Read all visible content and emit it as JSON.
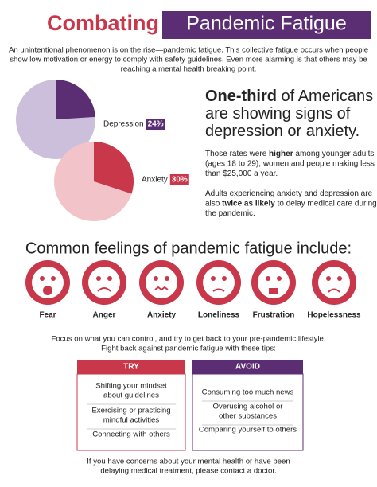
{
  "header": {
    "title_part1": "Combating",
    "title_part2": "Pandemic Fatigue"
  },
  "intro": [
    "An unintentional phenomenon is on the rise—pandemic fatigue. This collective fatigue occurs when people",
    "show low motivation or energy to comply with safety guidelines. Even more alarming is that others may be",
    "reaching a mental health breaking point."
  ],
  "stats": [
    {
      "label": "Depression",
      "value": 24,
      "value_label": "24%",
      "color": "#5b2d72",
      "rest_color": "#cbbfdb"
    },
    {
      "label": "Anxiety",
      "value": 30,
      "value_label": "30%",
      "color": "#c8374a",
      "rest_color": "#f2c3c8"
    }
  ],
  "headline": [
    [
      {
        "t": "One-third",
        "b": true
      },
      {
        "t": " of Americans",
        "b": false
      }
    ],
    [
      {
        "t": "are showing signs of",
        "b": false
      }
    ],
    [
      {
        "t": "depression or anxiety.",
        "b": false
      }
    ]
  ],
  "paragraphs": [
    [
      [
        {
          "t": "Those rates were ",
          "b": false
        },
        {
          "t": "higher",
          "b": true
        },
        {
          "t": " among younger adults",
          "b": false
        }
      ],
      [
        {
          "t": "(ages 18 to 29), women and people making less",
          "b": false
        }
      ],
      [
        {
          "t": "than $25,000 a year.",
          "b": false
        }
      ]
    ],
    [
      [
        {
          "t": "Adults experiencing anxiety and depression are",
          "b": false
        }
      ],
      [
        {
          "t": "also ",
          "b": false
        },
        {
          "t": "twice as likely",
          "b": true
        },
        {
          "t": " to delay medical care during",
          "b": false
        }
      ],
      [
        {
          "t": "the pandemic.",
          "b": false
        }
      ]
    ]
  ],
  "feelings_title": "Common feelings of pandemic fatigue include:",
  "feelings": [
    "Fear",
    "Anger",
    "Anxiety",
    "Loneliness",
    "Frustration",
    "Hopelessness"
  ],
  "focus": [
    "Focus on what you can control, and try to get back to your pre-pandemic lifestyle.",
    "Fight back against pandemic fatigue with these tips:"
  ],
  "try": {
    "title": "TRY",
    "items": [
      [
        "Shifting your mindset",
        "about guidelines"
      ],
      [
        "Exercising or practicing",
        "mindful activities"
      ],
      [
        "Connecting with others"
      ]
    ]
  },
  "avoid": {
    "title": "AVOID",
    "items": [
      [
        "Consuming too much news"
      ],
      [
        "Overusing alcohol or",
        "other substances"
      ],
      [
        "Comparing yourself to others"
      ]
    ]
  },
  "footer": [
    "If you have concerns about your mental health or have been",
    "delaying medical treatment, please contact a doctor."
  ]
}
